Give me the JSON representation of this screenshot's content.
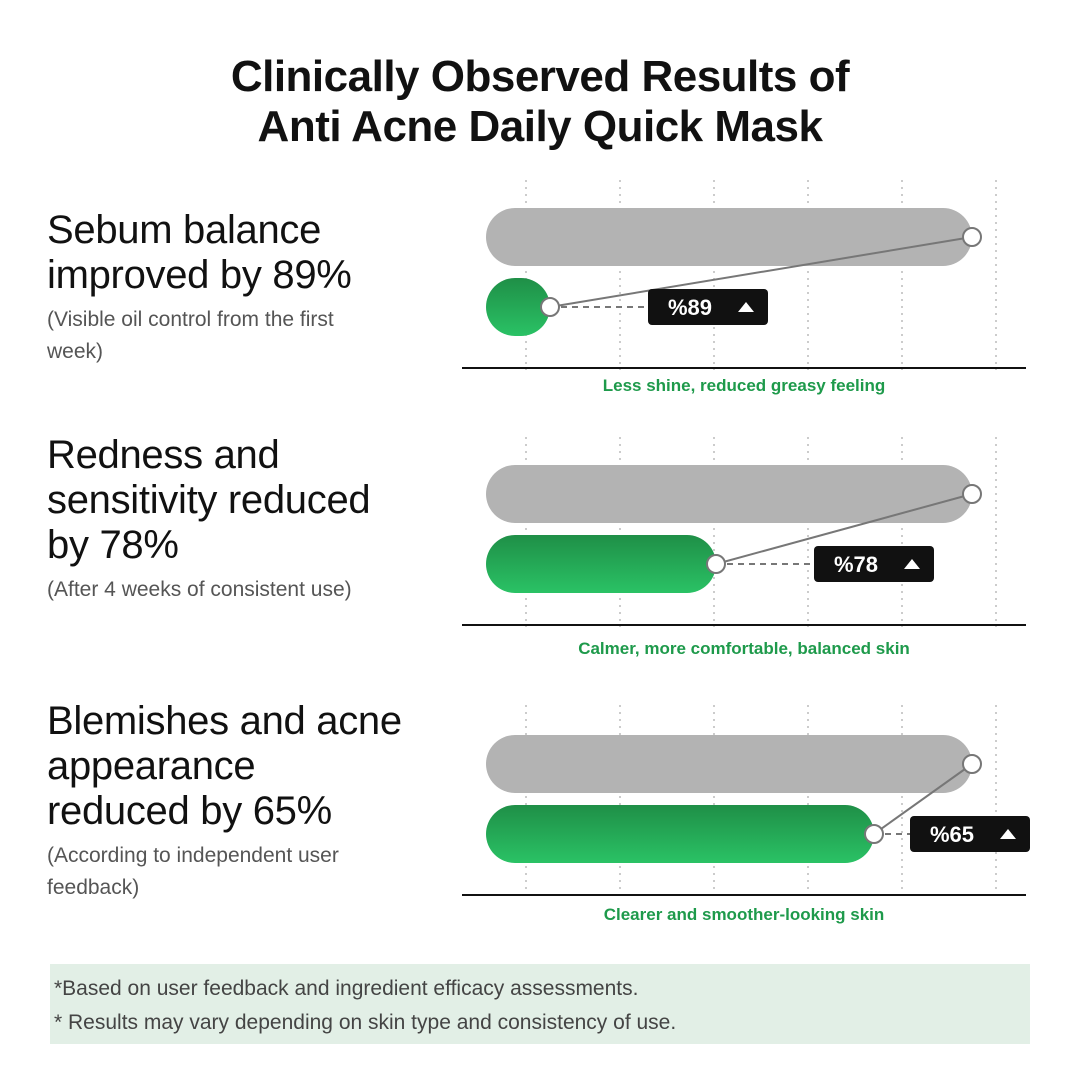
{
  "title": {
    "line1": "Clinically Observed Results of",
    "line2": "Anti Acne Daily Quick Mask"
  },
  "chart_data": [
    {
      "type": "bar",
      "series": [
        {
          "values": [
            100,
            89
          ]
        }
      ],
      "badge": "%89",
      "badge_icon": "up-triangle-icon",
      "label_lines": [
        "Sebum balance",
        "improved by 89%"
      ],
      "note": "(Visible oil control from the first week)",
      "caption": "Less shine, reduced greasy feeling"
    },
    {
      "type": "bar",
      "series": [
        {
          "values": [
            100,
            78
          ]
        }
      ],
      "badge": "%78",
      "badge_icon": "up-triangle-icon",
      "label_lines": [
        "Redness and",
        "sensitivity reduced",
        "by 78%"
      ],
      "note": "(After 4 weeks of consistent use)",
      "caption": "Calmer, more comfortable, balanced skin"
    },
    {
      "type": "bar",
      "series": [
        {
          "values": [
            100,
            65
          ]
        }
      ],
      "badge": "%65",
      "badge_icon": "up-triangle-icon",
      "label_lines": [
        "Blemishes and acne",
        "appearance",
        "reduced by 65%"
      ],
      "note": "(According to independent user feedback)",
      "caption": "Clearer and smoother-looking skin"
    }
  ],
  "footnotes": {
    "line1": "*Based on user feedback and ingredient efficacy assessments.",
    "line2": "* Results may vary depending on skin type and consistency of use."
  },
  "colors": {
    "gray_bar": "#b3b3b3",
    "green_top": "#1f8f47",
    "green_bottom": "#2ac265",
    "badge": "#111111",
    "caption": "#1e9a4b",
    "footnote_bg": "#e2efe6"
  }
}
